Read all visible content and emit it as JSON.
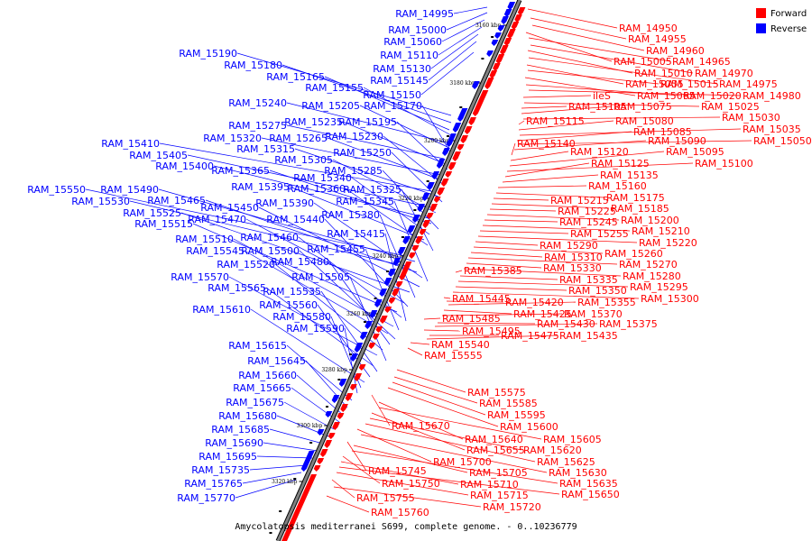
{
  "colors": {
    "forward": "#ff0000",
    "reverse": "#0000ff",
    "backbone": "#808080"
  },
  "legend": {
    "forward": "Forward",
    "reverse": "Reverse"
  },
  "caption": "Amycolatopsis mediterranei S699, complete genome. - 0..10236779",
  "ticks": [
    "3160 kbp",
    "3180 kbp",
    "3200 kbp",
    "3220 kbp",
    "3240 kbp",
    "3260 kbp",
    "3280 kbp",
    "3300 kbp",
    "3320 kbp"
  ],
  "forward_genes": [
    "RAM_14950",
    "RAM_14955",
    "RAM_14960",
    "RAM_15005",
    "RAM_14965",
    "RAM_14970",
    "RAM_15010",
    "RAM_14975",
    "RAM_15055",
    "RAM_15015",
    "RAM_15065",
    "RAM_15020",
    "RAM_14980",
    "ileS",
    "RAM_15025",
    "RAM_15105",
    "RAM_15075",
    "RAM_15030",
    "RAM_15115",
    "RAM_15080",
    "RAM_15035",
    "RAM_15085",
    "RAM_15050",
    "RAM_15090",
    "RAM_15140",
    "RAM_15120",
    "RAM_15095",
    "RAM_15100",
    "RAM_15125",
    "RAM_15135",
    "RAM_15160",
    "RAM_15175",
    "RAM_15215",
    "RAM_15185",
    "RAM_15225",
    "RAM_15200",
    "RAM_15245",
    "RAM_15210",
    "RAM_15255",
    "RAM_15220",
    "RAM_15290",
    "RAM_15260",
    "RAM_15310",
    "RAM_15270",
    "RAM_15330",
    "RAM_15280",
    "RAM_15385",
    "RAM_15335",
    "RAM_15295",
    "RAM_15350",
    "RAM_15300",
    "RAM_15445",
    "RAM_15420",
    "RAM_15355",
    "RAM_15425",
    "RAM_15370",
    "RAM_15485",
    "RAM_15430",
    "RAM_15375",
    "RAM_15495",
    "RAM_15475",
    "RAM_15435",
    "RAM_15540",
    "RAM_15555",
    "RAM_15575",
    "RAM_15585",
    "RAM_15595",
    "RAM_15600",
    "RAM_15670",
    "RAM_15640",
    "RAM_15605",
    "RAM_15655",
    "RAM_15620",
    "RAM_15625",
    "RAM_15700",
    "RAM_15630",
    "RAM_15745",
    "RAM_15705",
    "RAM_15635",
    "RAM_15750",
    "RAM_15710",
    "RAM_15650",
    "RAM_15715",
    "RAM_15755",
    "RAM_15720",
    "RAM_15760"
  ],
  "reverse_genes": [
    "RAM_14995",
    "RAM_15000",
    "RAM_15060",
    "RAM_15110",
    "RAM_15190",
    "RAM_15130",
    "RAM_15180",
    "RAM_15145",
    "RAM_15165",
    "RAM_15155",
    "RAM_15150",
    "RAM_15240",
    "RAM_15205",
    "RAM_15170",
    "RAM_15275",
    "RAM_15235",
    "RAM_15195",
    "RAM_15320",
    "RAM_15265",
    "RAM_15230",
    "RAM_15410",
    "RAM_15315",
    "RAM_15250",
    "RAM_15405",
    "RAM_15305",
    "RAM_15400",
    "RAM_15365",
    "RAM_15285",
    "RAM_15340",
    "RAM_15395",
    "RAM_15360",
    "RAM_15325",
    "RAM_15550",
    "RAM_15490",
    "RAM_15530",
    "RAM_15465",
    "RAM_15390",
    "RAM_15345",
    "RAM_15450",
    "RAM_15525",
    "RAM_15380",
    "RAM_15470",
    "RAM_15440",
    "RAM_15515",
    "RAM_15460",
    "RAM_15415",
    "RAM_15510",
    "RAM_15455",
    "RAM_15545",
    "RAM_15500",
    "RAM_15480",
    "RAM_15520",
    "RAM_15570",
    "RAM_15505",
    "RAM_15565",
    "RAM_15535",
    "RAM_15560",
    "RAM_15610",
    "RAM_15580",
    "RAM_15590",
    "RAM_15615",
    "RAM_15645",
    "RAM_15660",
    "RAM_15665",
    "RAM_15675",
    "RAM_15680",
    "RAM_15685",
    "RAM_15690",
    "RAM_15695",
    "RAM_15735",
    "RAM_15765",
    "RAM_15770"
  ]
}
